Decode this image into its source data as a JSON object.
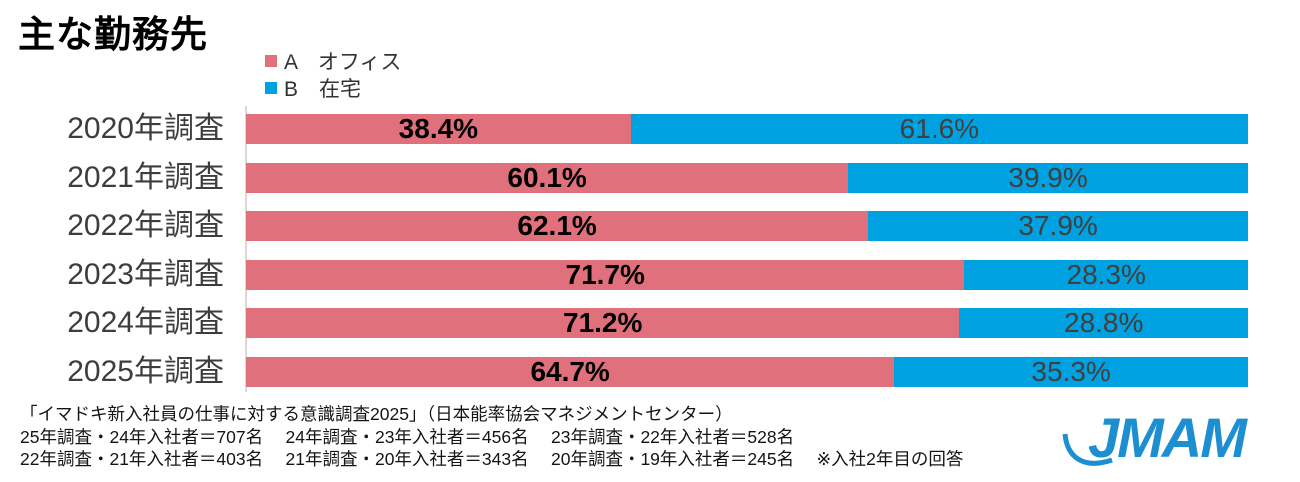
{
  "chart_data": {
    "type": "bar",
    "stacked": true,
    "orientation": "horizontal",
    "title": "主な勤務先",
    "xlabel": "",
    "ylabel": "",
    "xlim": [
      0,
      100
    ],
    "grid": false,
    "legend_position": "top",
    "value_suffix": "%",
    "categories": [
      "2020年調査",
      "2021年調査",
      "2022年調査",
      "2023年調査",
      "2024年調査",
      "2025年調査"
    ],
    "series": [
      {
        "name": "A　オフィス",
        "color": "#e0707b",
        "values": [
          38.4,
          60.1,
          62.1,
          71.7,
          71.2,
          64.7
        ]
      },
      {
        "name": "B　在宅",
        "color": "#00a1e0",
        "values": [
          61.6,
          39.9,
          37.9,
          28.3,
          28.8,
          35.3
        ]
      }
    ]
  },
  "footer": {
    "line1": "「イマドキ新入社員の仕事に対する意識調査2025」（日本能率協会マネジメントセンター）",
    "line2": "25年調査・24年入社者＝707名　 24年調査・23年入社者＝456名　 23年調査・22年入社者＝528名",
    "line3": "22年調査・21年入社者＝403名　 21年調査・20年入社者＝343名　 20年調査・19年入社者＝245名　 ※入社2年目の回答"
  },
  "logo": {
    "text": "JMAM",
    "color": "#1d8fd1"
  }
}
